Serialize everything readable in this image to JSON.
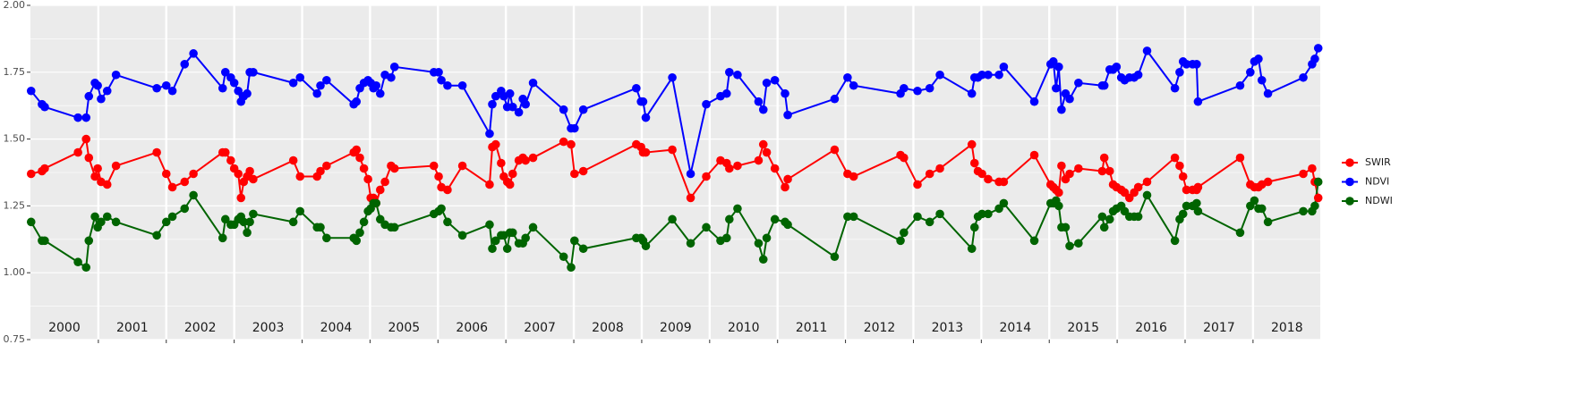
{
  "chart_data": {
    "type": "line",
    "xlim": [
      2000,
      2018.99
    ],
    "ylim": [
      0.75,
      2.0
    ],
    "yticks": [
      {
        "value": 0.75,
        "label": "0.75"
      },
      {
        "value": 1.0,
        "label": "1.00"
      },
      {
        "value": 1.25,
        "label": "1.25"
      },
      {
        "value": 1.5,
        "label": "1.50"
      },
      {
        "value": 1.75,
        "label": "1.75"
      },
      {
        "value": 2.0,
        "label": "2.00"
      }
    ],
    "y_minor_grid": [
      0.875,
      1.125,
      1.375,
      1.625,
      1.875
    ],
    "year_lines": [
      2001,
      2002,
      2003,
      2004,
      2005,
      2006,
      2007,
      2008,
      2009,
      2010,
      2011,
      2012,
      2013,
      2014,
      2015,
      2016,
      2017,
      2018
    ],
    "xticks": [
      {
        "value": 2000.5,
        "label": "2000"
      },
      {
        "value": 2001.5,
        "label": "2001"
      },
      {
        "value": 2002.5,
        "label": "2002"
      },
      {
        "value": 2003.5,
        "label": "2003"
      },
      {
        "value": 2004.5,
        "label": "2004"
      },
      {
        "value": 2005.5,
        "label": "2005"
      },
      {
        "value": 2006.5,
        "label": "2006"
      },
      {
        "value": 2007.5,
        "label": "2007"
      },
      {
        "value": 2008.5,
        "label": "2008"
      },
      {
        "value": 2009.5,
        "label": "2009"
      },
      {
        "value": 2010.5,
        "label": "2010"
      },
      {
        "value": 2011.5,
        "label": "2011"
      },
      {
        "value": 2012.5,
        "label": "2012"
      },
      {
        "value": 2013.5,
        "label": "2013"
      },
      {
        "value": 2014.5,
        "label": "2014"
      },
      {
        "value": 2015.5,
        "label": "2015"
      },
      {
        "value": 2016.5,
        "label": "2016"
      },
      {
        "value": 2017.5,
        "label": "2017"
      },
      {
        "value": 2018.5,
        "label": "2018"
      }
    ],
    "grid": true,
    "legend": "right",
    "x": [
      2000.01,
      2000.17,
      2000.21,
      2000.7,
      2000.82,
      2000.86,
      2000.95,
      2000.99,
      2001.04,
      2001.13,
      2001.26,
      2001.86,
      2002.0,
      2002.09,
      2002.27,
      2002.4,
      2002.83,
      2002.87,
      2002.95,
      2003.0,
      2003.06,
      2003.1,
      2003.14,
      2003.19,
      2003.23,
      2003.28,
      2003.87,
      2003.97,
      2004.22,
      2004.27,
      2004.36,
      2004.76,
      2004.8,
      2004.85,
      2004.91,
      2004.97,
      2005.01,
      2005.05,
      2005.09,
      2005.15,
      2005.22,
      2005.31,
      2005.36,
      2005.94,
      2006.01,
      2006.05,
      2006.14,
      2006.36,
      2006.76,
      2006.8,
      2006.85,
      2006.93,
      2006.97,
      2007.02,
      2007.06,
      2007.1,
      2007.19,
      2007.25,
      2007.29,
      2007.4,
      2007.85,
      2007.96,
      2008.01,
      2008.14,
      2008.92,
      2008.99,
      2009.02,
      2009.06,
      2009.45,
      2009.72,
      2009.95,
      2010.16,
      2010.25,
      2010.29,
      2010.41,
      2010.72,
      2010.79,
      2010.84,
      2010.96,
      2011.11,
      2011.15,
      2011.84,
      2012.03,
      2012.12,
      2012.81,
      2012.86,
      2013.06,
      2013.24,
      2013.39,
      2013.86,
      2013.9,
      2013.95,
      2014.01,
      2014.1,
      2014.26,
      2014.33,
      2014.78,
      2015.02,
      2015.06,
      2015.1,
      2015.14,
      2015.18,
      2015.24,
      2015.3,
      2015.43,
      2015.78,
      2015.81,
      2015.89,
      2015.94,
      2015.99,
      2016.06,
      2016.11,
      2016.18,
      2016.25,
      2016.31,
      2016.44,
      2016.85,
      2016.92,
      2016.97,
      2017.02,
      2017.11,
      2017.17,
      2017.19,
      2017.81,
      2017.96,
      2018.02,
      2018.08,
      2018.13,
      2018.22,
      2018.74,
      2018.87,
      2018.91,
      2018.96
    ],
    "series": [
      {
        "name": "SWIR",
        "color": "#ff0000",
        "values": [
          1.37,
          1.38,
          1.39,
          1.45,
          1.5,
          1.43,
          1.36,
          1.39,
          1.34,
          1.33,
          1.4,
          1.45,
          1.37,
          1.32,
          1.34,
          1.37,
          1.45,
          1.45,
          1.42,
          1.39,
          1.37,
          1.28,
          1.34,
          1.36,
          1.38,
          1.35,
          1.42,
          1.36,
          1.36,
          1.38,
          1.4,
          1.45,
          1.46,
          1.43,
          1.39,
          1.35,
          1.28,
          1.28,
          1.26,
          1.31,
          1.34,
          1.4,
          1.39,
          1.4,
          1.36,
          1.32,
          1.31,
          1.4,
          1.33,
          1.47,
          1.48,
          1.41,
          1.36,
          1.34,
          1.33,
          1.37,
          1.42,
          1.43,
          1.42,
          1.43,
          1.49,
          1.48,
          1.37,
          1.38,
          1.48,
          1.47,
          1.45,
          1.45,
          1.46,
          1.28,
          1.36,
          1.42,
          1.41,
          1.39,
          1.4,
          1.42,
          1.48,
          1.45,
          1.39,
          1.32,
          1.35,
          1.46,
          1.37,
          1.36,
          1.44,
          1.43,
          1.33,
          1.37,
          1.39,
          1.48,
          1.41,
          1.38,
          1.37,
          1.35,
          1.34,
          1.34,
          1.44,
          1.33,
          1.32,
          1.31,
          1.3,
          1.4,
          1.35,
          1.37,
          1.39,
          1.38,
          1.43,
          1.38,
          1.33,
          1.32,
          1.31,
          1.3,
          1.28,
          1.3,
          1.32,
          1.34,
          1.43,
          1.4,
          1.36,
          1.31,
          1.31,
          1.31,
          1.32,
          1.43,
          1.33,
          1.32,
          1.32,
          1.33,
          1.34,
          1.37,
          1.39,
          1.34,
          1.28
        ]
      },
      {
        "name": "NDVI",
        "color": "#0000ff",
        "values": [
          1.68,
          1.63,
          1.62,
          1.58,
          1.58,
          1.66,
          1.71,
          1.7,
          1.65,
          1.68,
          1.74,
          1.69,
          1.7,
          1.68,
          1.78,
          1.82,
          1.69,
          1.75,
          1.73,
          1.71,
          1.68,
          1.64,
          1.66,
          1.67,
          1.75,
          1.75,
          1.71,
          1.73,
          1.67,
          1.7,
          1.72,
          1.63,
          1.64,
          1.69,
          1.71,
          1.72,
          1.71,
          1.69,
          1.7,
          1.67,
          1.74,
          1.73,
          1.77,
          1.75,
          1.75,
          1.72,
          1.7,
          1.7,
          1.52,
          1.63,
          1.66,
          1.68,
          1.66,
          1.62,
          1.67,
          1.62,
          1.6,
          1.65,
          1.63,
          1.71,
          1.61,
          1.54,
          1.54,
          1.61,
          1.69,
          1.64,
          1.64,
          1.58,
          1.73,
          1.37,
          1.63,
          1.66,
          1.67,
          1.75,
          1.74,
          1.64,
          1.61,
          1.71,
          1.72,
          1.67,
          1.59,
          1.65,
          1.73,
          1.7,
          1.67,
          1.69,
          1.68,
          1.69,
          1.74,
          1.67,
          1.73,
          1.73,
          1.74,
          1.74,
          1.74,
          1.77,
          1.64,
          1.78,
          1.79,
          1.69,
          1.77,
          1.61,
          1.67,
          1.65,
          1.71,
          1.7,
          1.7,
          1.76,
          1.76,
          1.77,
          1.73,
          1.72,
          1.73,
          1.73,
          1.74,
          1.83,
          1.69,
          1.75,
          1.79,
          1.78,
          1.78,
          1.78,
          1.64,
          1.7,
          1.75,
          1.79,
          1.8,
          1.72,
          1.67,
          1.73,
          1.78,
          1.8,
          1.84
        ]
      },
      {
        "name": "NDWI",
        "color": "#006400",
        "values": [
          1.19,
          1.12,
          1.12,
          1.04,
          1.02,
          1.12,
          1.21,
          1.17,
          1.19,
          1.21,
          1.19,
          1.14,
          1.19,
          1.21,
          1.24,
          1.29,
          1.13,
          1.2,
          1.18,
          1.18,
          1.2,
          1.21,
          1.19,
          1.15,
          1.19,
          1.22,
          1.19,
          1.23,
          1.17,
          1.17,
          1.13,
          1.13,
          1.12,
          1.15,
          1.19,
          1.23,
          1.24,
          1.26,
          1.26,
          1.2,
          1.18,
          1.17,
          1.17,
          1.22,
          1.23,
          1.24,
          1.19,
          1.14,
          1.18,
          1.09,
          1.12,
          1.14,
          1.14,
          1.09,
          1.15,
          1.15,
          1.11,
          1.11,
          1.13,
          1.17,
          1.06,
          1.02,
          1.12,
          1.09,
          1.13,
          1.13,
          1.12,
          1.1,
          1.2,
          1.11,
          1.17,
          1.12,
          1.13,
          1.2,
          1.24,
          1.11,
          1.05,
          1.13,
          1.2,
          1.19,
          1.18,
          1.06,
          1.21,
          1.21,
          1.12,
          1.15,
          1.21,
          1.19,
          1.22,
          1.09,
          1.17,
          1.21,
          1.22,
          1.22,
          1.24,
          1.26,
          1.12,
          1.26,
          1.26,
          1.27,
          1.25,
          1.17,
          1.17,
          1.1,
          1.11,
          1.21,
          1.17,
          1.2,
          1.23,
          1.24,
          1.25,
          1.23,
          1.21,
          1.21,
          1.21,
          1.29,
          1.12,
          1.2,
          1.22,
          1.25,
          1.25,
          1.26,
          1.23,
          1.15,
          1.25,
          1.27,
          1.24,
          1.24,
          1.19,
          1.23,
          1.23,
          1.25,
          1.34
        ]
      }
    ]
  }
}
